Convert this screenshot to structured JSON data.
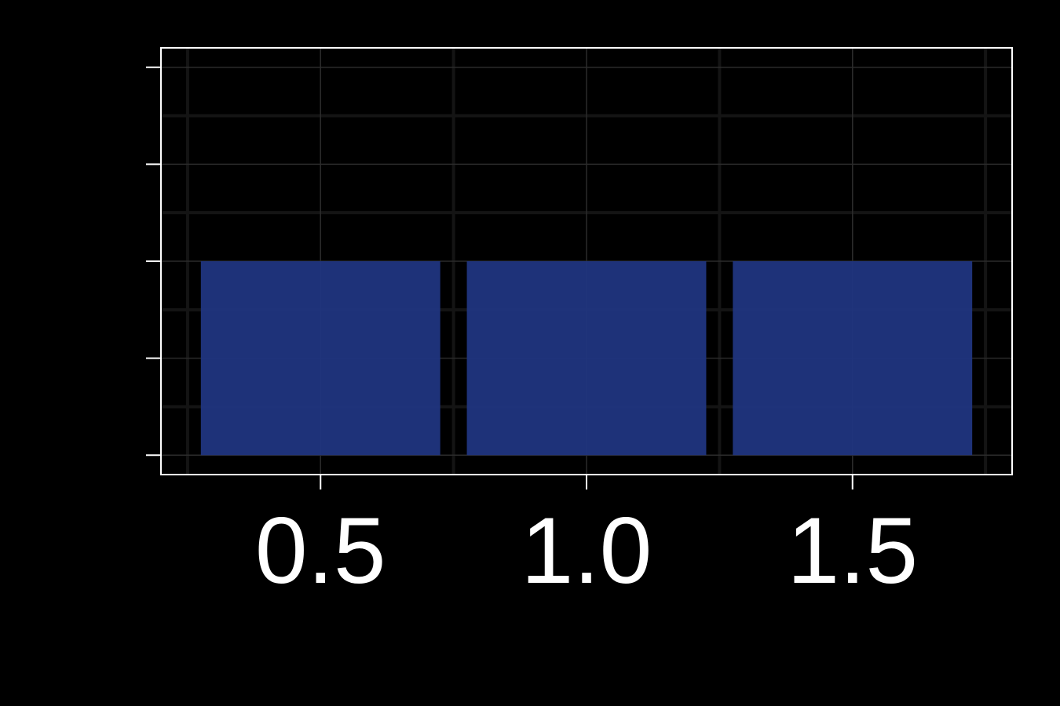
{
  "chart_data": {
    "type": "bar",
    "x": [
      0.5,
      1.0,
      1.5
    ],
    "values": [
      2,
      2,
      2
    ],
    "bar_width": 0.45,
    "xticks": [
      "0.5",
      "1.0",
      "1.5"
    ],
    "yticks": [
      0,
      1,
      2,
      3,
      4
    ],
    "xlim": [
      0.2,
      1.8
    ],
    "ylim": [
      -0.2,
      4.2
    ],
    "title": "",
    "xlabel": "",
    "ylabel": "",
    "grid": true,
    "colors": {
      "background": "#000000",
      "bar": "#203580",
      "axes": "#ffffff",
      "grid_major": "#2b2b2b",
      "grid_minor": "#141414",
      "tick_label": "#ffffff"
    }
  }
}
